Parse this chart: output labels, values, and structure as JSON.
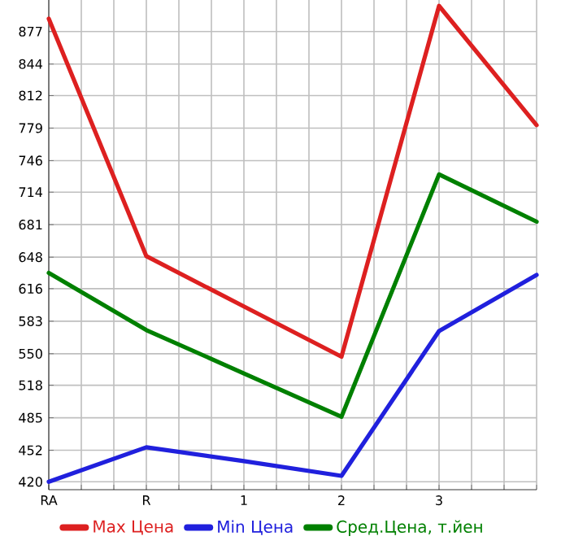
{
  "chart_data": {
    "type": "line",
    "categories": [
      "RA",
      "R",
      "1",
      "2",
      "3",
      null
    ],
    "series": [
      {
        "name": "Max Цена",
        "color": "#dd2020",
        "values": [
          890,
          649,
          598,
          547,
          903,
          782
        ]
      },
      {
        "name": "Min Цена",
        "color": "#2020dd",
        "values": [
          420,
          455,
          441,
          426,
          573,
          630
        ]
      },
      {
        "name": "Сред.Цена, т.йен",
        "color": "#008000",
        "values": [
          632,
          574,
          530,
          486,
          732,
          684
        ]
      }
    ],
    "ylim": [
      412,
      909
    ],
    "yticks": [
      420,
      452,
      485,
      518,
      550,
      583,
      616,
      648,
      681,
      714,
      746,
      779,
      812,
      844,
      877
    ],
    "grid": true,
    "legend": "bottom",
    "marker": "none",
    "line_style": "solid"
  }
}
